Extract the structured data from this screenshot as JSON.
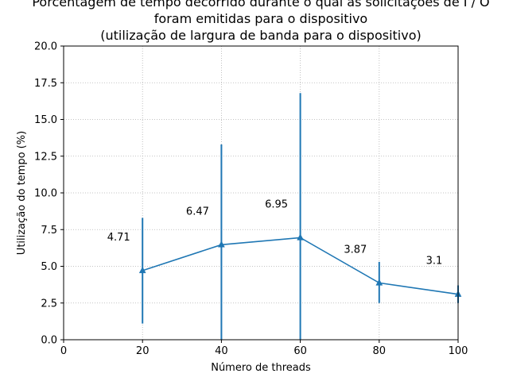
{
  "chart_data": {
    "type": "line",
    "title_lines": [
      "Porcentagem de tempo decorrido durante o qual as solicitações de I / O",
      "foram emitidas para o dispositivo",
      "(utilização de largura de banda para o dispositivo)"
    ],
    "xlabel": "Número de threads",
    "ylabel": "Utilização do tempo (%)",
    "xlim": [
      0,
      100
    ],
    "ylim": [
      0,
      20
    ],
    "xticks": [
      0,
      20,
      40,
      60,
      80,
      100
    ],
    "xtick_labels": [
      "0",
      "20",
      "40",
      "60",
      "80",
      "100"
    ],
    "yticks": [
      0,
      2.5,
      5,
      7.5,
      10,
      12.5,
      15,
      17.5,
      20
    ],
    "ytick_labels": [
      "0.0",
      "2.5",
      "5.0",
      "7.5",
      "10.0",
      "12.5",
      "15.0",
      "17.5",
      "20.0"
    ],
    "grid": true,
    "series": [
      {
        "x": [
          20,
          40,
          60,
          80,
          100
        ],
        "y": [
          4.71,
          6.47,
          6.95,
          3.87,
          3.1
        ],
        "err_low": [
          1.1,
          0.0,
          0.0,
          2.5,
          2.5
        ],
        "err_high": [
          8.3,
          13.3,
          16.8,
          5.3,
          3.7
        ],
        "labels": [
          "4.71",
          "6.47",
          "6.95",
          "3.87",
          "3.1"
        ],
        "marker": "triangle-up",
        "color": "#1f77b4"
      }
    ]
  }
}
